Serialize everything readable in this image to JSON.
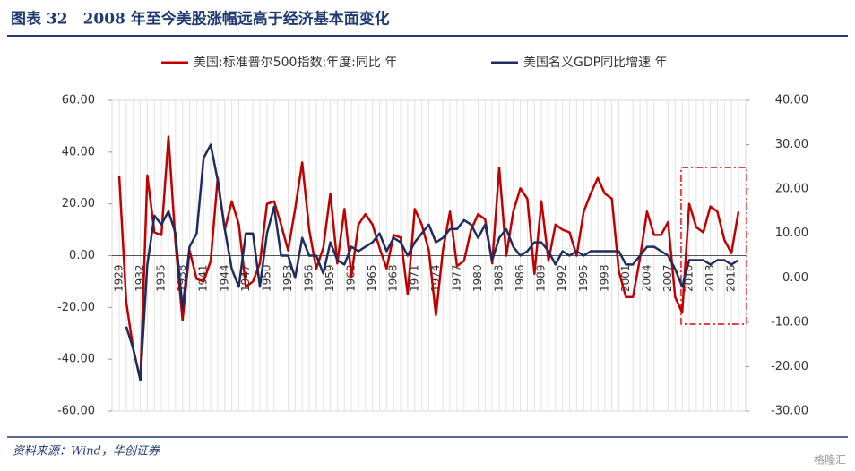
{
  "chart_data": {
    "type": "line",
    "title": "图表 32　2008 年至今美股涨幅远高于经济基本面变化",
    "source": "资料来源：Wind，华创证券",
    "watermark": "格隆汇",
    "categories": [
      "1929",
      null,
      null,
      "1932",
      null,
      null,
      "1935",
      null,
      null,
      "1938",
      null,
      null,
      "1941",
      null,
      null,
      "1944",
      null,
      null,
      "1947",
      null,
      null,
      "1950",
      null,
      null,
      "1953",
      null,
      null,
      "1956",
      null,
      null,
      "1959",
      null,
      null,
      "1962",
      null,
      null,
      "1965",
      null,
      null,
      "1968",
      null,
      null,
      "1971",
      null,
      null,
      "1974",
      null,
      null,
      "1977",
      null,
      null,
      "1980",
      null,
      null,
      "1983",
      null,
      null,
      "1986",
      null,
      null,
      "1989",
      null,
      null,
      "1992",
      null,
      null,
      "1995",
      null,
      null,
      "1998",
      null,
      null,
      "2001",
      null,
      null,
      "2004",
      null,
      null,
      "2007",
      null,
      null,
      "2010",
      null,
      null,
      "2013",
      null,
      null,
      "2016",
      null
    ],
    "series": [
      {
        "name": "美国:标准普尔500指数:年度:同比 年",
        "color": "#c00000",
        "axis": "y",
        "values": [
          31,
          -18,
          -36,
          -48,
          31,
          9,
          8,
          46,
          5,
          -25,
          2,
          -9,
          -10,
          -2,
          30,
          10,
          21,
          12,
          -12,
          -10,
          -3,
          20,
          21,
          12,
          2,
          18,
          36,
          10,
          -5,
          3,
          24,
          -3,
          18,
          -8,
          12,
          16,
          12,
          3,
          -5,
          8,
          7,
          -15,
          18,
          12,
          2,
          -23,
          2,
          17,
          -4,
          -2,
          10,
          16,
          14,
          -3,
          34,
          0,
          17,
          26,
          22,
          -7,
          21,
          -2,
          12,
          10,
          9,
          0,
          17,
          24,
          30,
          24,
          22,
          -6,
          -16,
          -16,
          -1,
          17,
          8,
          8,
          13,
          -16,
          -22,
          20,
          11,
          9,
          19,
          17,
          6,
          1,
          17
        ]
      },
      {
        "name": "美国名义GDP同比增速 年",
        "color": "#1f2d5c",
        "axis": "y2",
        "values": [
          null,
          -11,
          -16,
          -23,
          3,
          14,
          12,
          15,
          10,
          -7,
          7,
          10,
          27,
          30,
          22,
          11,
          2,
          -2,
          10,
          10,
          -2,
          10,
          16,
          5,
          5,
          0,
          9,
          5,
          5,
          1,
          8,
          4,
          3,
          7,
          6,
          7,
          8,
          10,
          6,
          9,
          8,
          5,
          8,
          10,
          12,
          8,
          9,
          11,
          11,
          13,
          12,
          9,
          12,
          4,
          9,
          11,
          7,
          5,
          6,
          8,
          8,
          6,
          3,
          6,
          5,
          6,
          5,
          6,
          6,
          6,
          6,
          6,
          3,
          3,
          5,
          7,
          7,
          6,
          5,
          2,
          -2,
          4,
          4,
          4,
          3,
          4,
          4,
          3,
          4
        ]
      }
    ],
    "ylim": [
      -60,
      60
    ],
    "yticks": [
      {
        "value": -60,
        "label": "-60.00"
      },
      {
        "value": -40,
        "label": "-40.00"
      },
      {
        "value": -20,
        "label": "-20.00"
      },
      {
        "value": 0,
        "label": "0.00"
      },
      {
        "value": 20,
        "label": "20.00"
      },
      {
        "value": 40,
        "label": "40.00"
      },
      {
        "value": 60,
        "label": "60.00"
      }
    ],
    "y2lim": [
      -30,
      40
    ],
    "y2ticks": [
      {
        "value": -30,
        "label": "-30.00"
      },
      {
        "value": -20,
        "label": "-20.00"
      },
      {
        "value": -10,
        "label": "-10.00"
      },
      {
        "value": 0,
        "label": "0.00"
      },
      {
        "value": 10,
        "label": "10.00"
      },
      {
        "value": 20,
        "label": "20.00"
      },
      {
        "value": 30,
        "label": "30.00"
      },
      {
        "value": 40,
        "label": "40.00"
      }
    ],
    "grid": true,
    "legend": "top"
  }
}
